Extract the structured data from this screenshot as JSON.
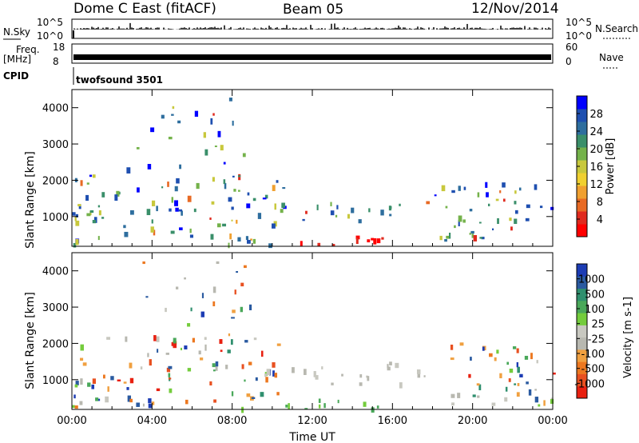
{
  "header": {
    "station": "Dome C East (fitACF)",
    "beam": "Beam 05",
    "date": "12/Nov/2014"
  },
  "status_panels": {
    "nsky_label": "N.Sky",
    "nsky_ticks": [
      "10^5",
      "10^0"
    ],
    "nsearch_label": "N.Search",
    "nsearch_ticks": [
      "10^5",
      "10^0"
    ],
    "freq_label_1": "Freq.",
    "freq_label_2": "[MHz]",
    "freq_ticks": [
      "18",
      "8"
    ],
    "nave_label": "Nave",
    "nave_ticks": [
      "60",
      "0"
    ],
    "cpid_label": "CPID",
    "cpid_value": "twofsound 3501"
  },
  "chart_data": [
    {
      "type": "heatmap",
      "name": "power-panel",
      "ylabel": "Slant Range [km]",
      "yticks": [
        1000,
        2000,
        3000,
        4000
      ],
      "ylim": [
        180,
        4500
      ],
      "xticks": [
        "00:00",
        "04:00",
        "08:00",
        "12:00",
        "16:00",
        "20:00",
        "00:00"
      ],
      "xlim_hours": [
        0,
        24
      ],
      "colorbar": {
        "label": "Power [dB]",
        "ticks": [
          "4",
          "8",
          "12",
          "16",
          "20",
          "24",
          "28"
        ],
        "colors": [
          "#0000ff",
          "#1e4fb0",
          "#2e6e9e",
          "#3a8f6a",
          "#74b24a",
          "#c8c83c",
          "#f0d030",
          "#f0a030",
          "#e86a24",
          "#e02a1e",
          "#ff0000"
        ]
      }
    },
    {
      "type": "heatmap",
      "name": "velocity-panel",
      "ylabel": "Slant Range [km]",
      "yticks": [
        1000,
        2000,
        3000,
        4000
      ],
      "ylim": [
        180,
        4500
      ],
      "xticks": [
        "00:00",
        "04:00",
        "08:00",
        "12:00",
        "16:00",
        "20:00",
        "00:00"
      ],
      "xlim_hours": [
        0,
        24
      ],
      "xlabel": "Time UT",
      "colorbar": {
        "label": "Velocity [m s-1]",
        "ticks": [
          "1000",
          "500",
          "100",
          "25",
          "-25",
          "-100",
          "-500",
          "-1000"
        ],
        "colors": [
          "#1c3cb4",
          "#2a5aa0",
          "#2f8f6e",
          "#4aa85a",
          "#74cc3c",
          "#c8c8c0",
          "#b8b8b0",
          "#f0a040",
          "#ec7820",
          "#e85020",
          "#e82010"
        ]
      }
    }
  ]
}
